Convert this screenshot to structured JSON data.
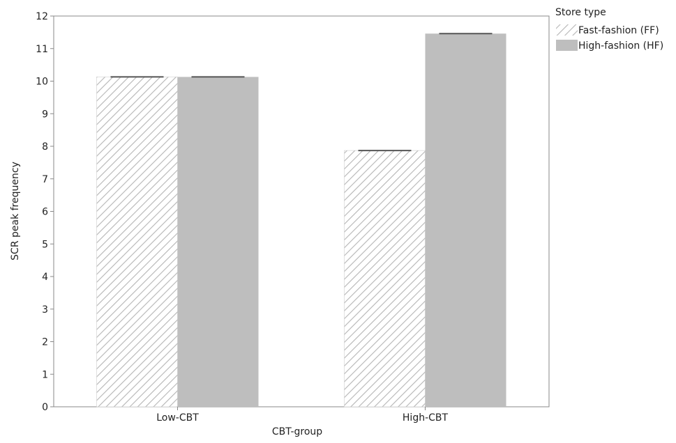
{
  "chart_data": {
    "type": "bar",
    "title": "",
    "xlabel": "CBT-group",
    "ylabel": "SCR peak frequency",
    "categories": [
      "Low-CBT",
      "High-CBT"
    ],
    "series": [
      {
        "name": "Fast-fashion (FF)",
        "values": [
          10.13,
          7.87
        ],
        "fill": "hatched",
        "color": "#b5b5b5"
      },
      {
        "name": "High-fashion (HF)",
        "values": [
          10.13,
          11.46
        ],
        "fill": "solid",
        "color": "#bebebe"
      }
    ],
    "ylim": [
      0,
      12
    ],
    "yticks": [
      0,
      1,
      2,
      3,
      4,
      5,
      6,
      7,
      8,
      9,
      10,
      11,
      12
    ],
    "grid": false,
    "legend": {
      "title": "Store type",
      "placement": "right-top"
    }
  },
  "colors": {
    "axis": "#888888",
    "bar_cap": "#555555",
    "hatch_line": "#b5b5b5"
  }
}
